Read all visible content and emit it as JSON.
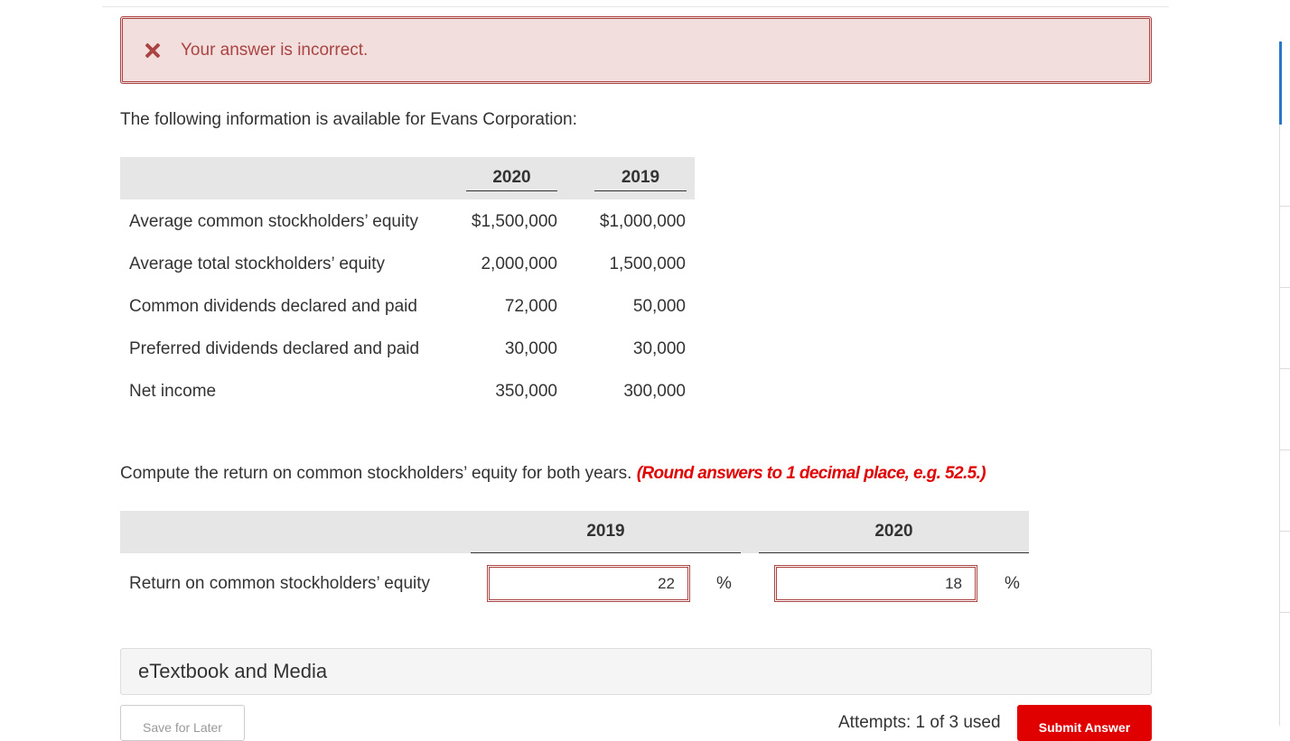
{
  "feedback": {
    "icon": "close-icon",
    "message": "Your answer is incorrect.",
    "color": "#a94442"
  },
  "intro": "The following information is available for Evans Corporation:",
  "info_table": {
    "columns": [
      "2020",
      "2019"
    ],
    "rows": [
      {
        "label": "Average common stockholders’ equity",
        "v2020": "$1,500,000",
        "v2019": "$1,000,000"
      },
      {
        "label": "Average total stockholders’ equity",
        "v2020": "2,000,000",
        "v2019": "1,500,000"
      },
      {
        "label": "Common dividends declared and paid",
        "v2020": "72,000",
        "v2019": "50,000"
      },
      {
        "label": "Preferred dividends declared and paid",
        "v2020": "30,000",
        "v2019": "30,000"
      },
      {
        "label": "Net income",
        "v2020": "350,000",
        "v2019": "300,000"
      }
    ]
  },
  "question": {
    "text": "Compute the return on common stockholders’ equity for both years.",
    "hint": "(Round answers to 1 decimal place, e.g. 52.5.)",
    "hint_color": "#e00000"
  },
  "answer_table": {
    "columns": [
      "2019",
      "2020"
    ],
    "row_label": "Return on common stockholders’ equity",
    "values": [
      "22",
      "18"
    ],
    "unit": "%"
  },
  "etextbook": "eTextbook and Media",
  "footer": {
    "save_label": "Save for Later",
    "attempts": "Attempts: 1 of 3 used",
    "submit_label": "Submit Answer",
    "submit_color": "#e00000"
  }
}
